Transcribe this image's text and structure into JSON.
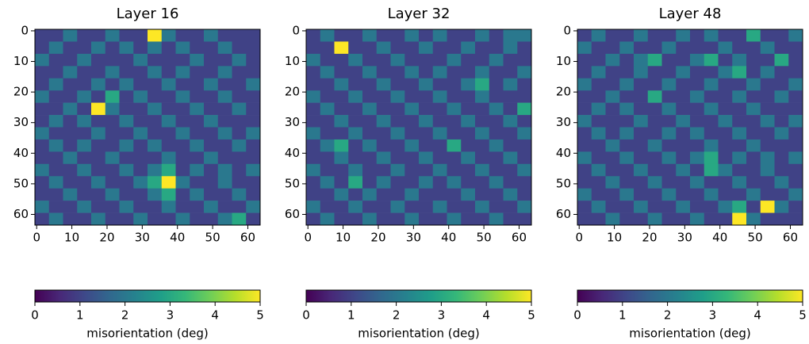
{
  "chart_data": [
    {
      "type": "heatmap",
      "title": "Layer 16",
      "colormap": "viridis",
      "clim": [
        0,
        5
      ],
      "xlim": [
        -0.5,
        63.5
      ],
      "ylim": [
        63.5,
        -0.5
      ],
      "xticks": [
        0,
        10,
        20,
        30,
        40,
        50,
        60
      ],
      "yticks": [
        0,
        10,
        20,
        30,
        40,
        50,
        60
      ],
      "colorbar_label": "misorientation (deg)",
      "colorbar_ticks": [
        0,
        1,
        2,
        3,
        4,
        5
      ],
      "z": [
        [
          1,
          1,
          2,
          1,
          1,
          2,
          1,
          1,
          5,
          2,
          1,
          1,
          2,
          1,
          1,
          1
        ],
        [
          1,
          2,
          1,
          1,
          2,
          1,
          2,
          1,
          2,
          1,
          2,
          1,
          1,
          2,
          1,
          1
        ],
        [
          2,
          1,
          1,
          2,
          1,
          1,
          1,
          2,
          1,
          1,
          1,
          2,
          1,
          1,
          2,
          1
        ],
        [
          1,
          1,
          2,
          1,
          1,
          2,
          1,
          1,
          2,
          1,
          2,
          1,
          1,
          2,
          1,
          1
        ],
        [
          1,
          2,
          1,
          1,
          2,
          1,
          2,
          1,
          1,
          2,
          1,
          1,
          2,
          1,
          1,
          2
        ],
        [
          2,
          1,
          1,
          2,
          1,
          3,
          1,
          2,
          1,
          1,
          2,
          1,
          1,
          2,
          1,
          1
        ],
        [
          1,
          1,
          2,
          1,
          5,
          2,
          1,
          1,
          2,
          1,
          1,
          2,
          1,
          1,
          2,
          1
        ],
        [
          1,
          2,
          1,
          2,
          1,
          1,
          2,
          1,
          1,
          2,
          1,
          1,
          2,
          1,
          1,
          1
        ],
        [
          2,
          1,
          1,
          1,
          2,
          1,
          1,
          2,
          1,
          1,
          2,
          1,
          1,
          2,
          1,
          2
        ],
        [
          1,
          2,
          1,
          2,
          1,
          1,
          2,
          1,
          2,
          1,
          1,
          2,
          1,
          1,
          2,
          1
        ],
        [
          1,
          1,
          2,
          1,
          1,
          2,
          1,
          1,
          1,
          2,
          1,
          1,
          2,
          1,
          1,
          1
        ],
        [
          2,
          1,
          1,
          2,
          1,
          1,
          2,
          1,
          2,
          3,
          1,
          2,
          1,
          2,
          1,
          2
        ],
        [
          1,
          2,
          1,
          1,
          2,
          1,
          1,
          2,
          3,
          5,
          2,
          1,
          1,
          2,
          1,
          1
        ],
        [
          1,
          1,
          2,
          1,
          1,
          2,
          1,
          1,
          2,
          3,
          1,
          2,
          1,
          1,
          2,
          1
        ],
        [
          2,
          1,
          1,
          2,
          1,
          1,
          2,
          1,
          1,
          2,
          1,
          1,
          2,
          1,
          1,
          2
        ],
        [
          1,
          2,
          1,
          1,
          2,
          1,
          1,
          2,
          1,
          1,
          2,
          1,
          1,
          2,
          3,
          1
        ]
      ]
    },
    {
      "type": "heatmap",
      "title": "Layer 32",
      "colormap": "viridis",
      "clim": [
        0,
        5
      ],
      "xlim": [
        -0.5,
        63.5
      ],
      "ylim": [
        63.5,
        -0.5
      ],
      "xticks": [
        0,
        10,
        20,
        30,
        40,
        50,
        60
      ],
      "yticks": [
        0,
        10,
        20,
        30,
        40,
        50,
        60
      ],
      "colorbar_label": "misorientation (deg)",
      "colorbar_ticks": [
        0,
        1,
        2,
        3,
        4,
        5
      ],
      "z": [
        [
          1,
          2,
          1,
          1,
          2,
          1,
          1,
          2,
          1,
          2,
          1,
          1,
          2,
          1,
          2,
          2
        ],
        [
          1,
          1,
          5,
          1,
          1,
          2,
          1,
          1,
          2,
          1,
          1,
          2,
          1,
          1,
          2,
          1
        ],
        [
          2,
          1,
          1,
          2,
          1,
          1,
          2,
          1,
          1,
          1,
          2,
          1,
          1,
          2,
          1,
          1
        ],
        [
          1,
          2,
          1,
          1,
          2,
          1,
          1,
          2,
          1,
          2,
          1,
          1,
          2,
          1,
          1,
          2
        ],
        [
          1,
          1,
          2,
          1,
          1,
          2,
          1,
          1,
          2,
          1,
          1,
          2,
          3,
          1,
          2,
          1
        ],
        [
          2,
          1,
          1,
          2,
          1,
          1,
          2,
          1,
          1,
          2,
          1,
          1,
          2,
          1,
          1,
          1
        ],
        [
          1,
          2,
          1,
          1,
          2,
          1,
          1,
          2,
          1,
          1,
          2,
          1,
          1,
          2,
          1,
          3
        ],
        [
          1,
          1,
          2,
          1,
          1,
          2,
          1,
          1,
          2,
          1,
          1,
          2,
          1,
          1,
          2,
          1
        ],
        [
          2,
          1,
          1,
          2,
          1,
          1,
          2,
          1,
          1,
          2,
          1,
          1,
          2,
          1,
          1,
          2
        ],
        [
          1,
          2,
          3,
          1,
          2,
          1,
          1,
          2,
          1,
          1,
          3,
          1,
          1,
          2,
          1,
          1
        ],
        [
          1,
          1,
          2,
          1,
          1,
          2,
          1,
          1,
          2,
          1,
          1,
          2,
          1,
          1,
          2,
          1
        ],
        [
          2,
          1,
          1,
          2,
          1,
          1,
          2,
          1,
          1,
          2,
          1,
          1,
          2,
          1,
          1,
          2
        ],
        [
          1,
          2,
          1,
          3,
          1,
          2,
          1,
          1,
          2,
          1,
          2,
          1,
          1,
          2,
          1,
          1
        ],
        [
          1,
          1,
          2,
          1,
          2,
          1,
          1,
          2,
          1,
          1,
          1,
          2,
          1,
          1,
          2,
          1
        ],
        [
          2,
          1,
          1,
          2,
          1,
          1,
          2,
          1,
          1,
          2,
          1,
          1,
          2,
          1,
          1,
          2
        ],
        [
          1,
          2,
          1,
          1,
          2,
          1,
          1,
          2,
          1,
          1,
          2,
          1,
          1,
          2,
          1,
          1
        ]
      ]
    },
    {
      "type": "heatmap",
      "title": "Layer 48",
      "colormap": "viridis",
      "clim": [
        0,
        5
      ],
      "xlim": [
        -0.5,
        63.5
      ],
      "ylim": [
        63.5,
        -0.5
      ],
      "xticks": [
        0,
        10,
        20,
        30,
        40,
        50,
        60
      ],
      "yticks": [
        0,
        10,
        20,
        30,
        40,
        50,
        60
      ],
      "colorbar_label": "misorientation (deg)",
      "colorbar_ticks": [
        0,
        1,
        2,
        3,
        4,
        5
      ],
      "z": [
        [
          1,
          2,
          1,
          1,
          2,
          1,
          1,
          2,
          1,
          2,
          1,
          1,
          3,
          1,
          1,
          2
        ],
        [
          2,
          1,
          1,
          2,
          1,
          1,
          2,
          1,
          1,
          1,
          2,
          1,
          1,
          2,
          1,
          1
        ],
        [
          1,
          1,
          2,
          1,
          2,
          3,
          1,
          1,
          2,
          3,
          1,
          2,
          1,
          1,
          3,
          1
        ],
        [
          1,
          2,
          1,
          1,
          2,
          1,
          1,
          2,
          1,
          1,
          2,
          3,
          1,
          2,
          1,
          1
        ],
        [
          2,
          1,
          1,
          2,
          1,
          1,
          2,
          1,
          1,
          2,
          1,
          1,
          2,
          1,
          1,
          2
        ],
        [
          1,
          1,
          2,
          1,
          1,
          3,
          1,
          1,
          2,
          1,
          1,
          2,
          1,
          1,
          2,
          1
        ],
        [
          1,
          2,
          1,
          2,
          1,
          1,
          2,
          1,
          1,
          2,
          1,
          1,
          2,
          1,
          1,
          1
        ],
        [
          2,
          1,
          1,
          1,
          2,
          1,
          1,
          2,
          1,
          1,
          2,
          1,
          1,
          2,
          1,
          2
        ],
        [
          1,
          2,
          1,
          2,
          1,
          1,
          2,
          1,
          2,
          1,
          1,
          2,
          1,
          1,
          2,
          1
        ],
        [
          1,
          1,
          2,
          1,
          1,
          2,
          1,
          1,
          1,
          2,
          1,
          1,
          2,
          1,
          1,
          1
        ],
        [
          2,
          1,
          1,
          2,
          1,
          1,
          2,
          1,
          2,
          3,
          1,
          2,
          1,
          2,
          1,
          2
        ],
        [
          1,
          2,
          1,
          1,
          2,
          1,
          1,
          2,
          1,
          3,
          2,
          1,
          1,
          2,
          1,
          1
        ],
        [
          1,
          1,
          2,
          1,
          1,
          2,
          1,
          1,
          2,
          1,
          1,
          2,
          1,
          1,
          2,
          1
        ],
        [
          2,
          1,
          1,
          2,
          1,
          1,
          2,
          1,
          1,
          2,
          1,
          1,
          2,
          1,
          1,
          2
        ],
        [
          1,
          2,
          1,
          1,
          2,
          1,
          1,
          2,
          1,
          1,
          2,
          3,
          1,
          5,
          2,
          1
        ],
        [
          1,
          1,
          2,
          1,
          1,
          2,
          1,
          1,
          2,
          1,
          1,
          5,
          2,
          1,
          1,
          1
        ]
      ]
    }
  ]
}
